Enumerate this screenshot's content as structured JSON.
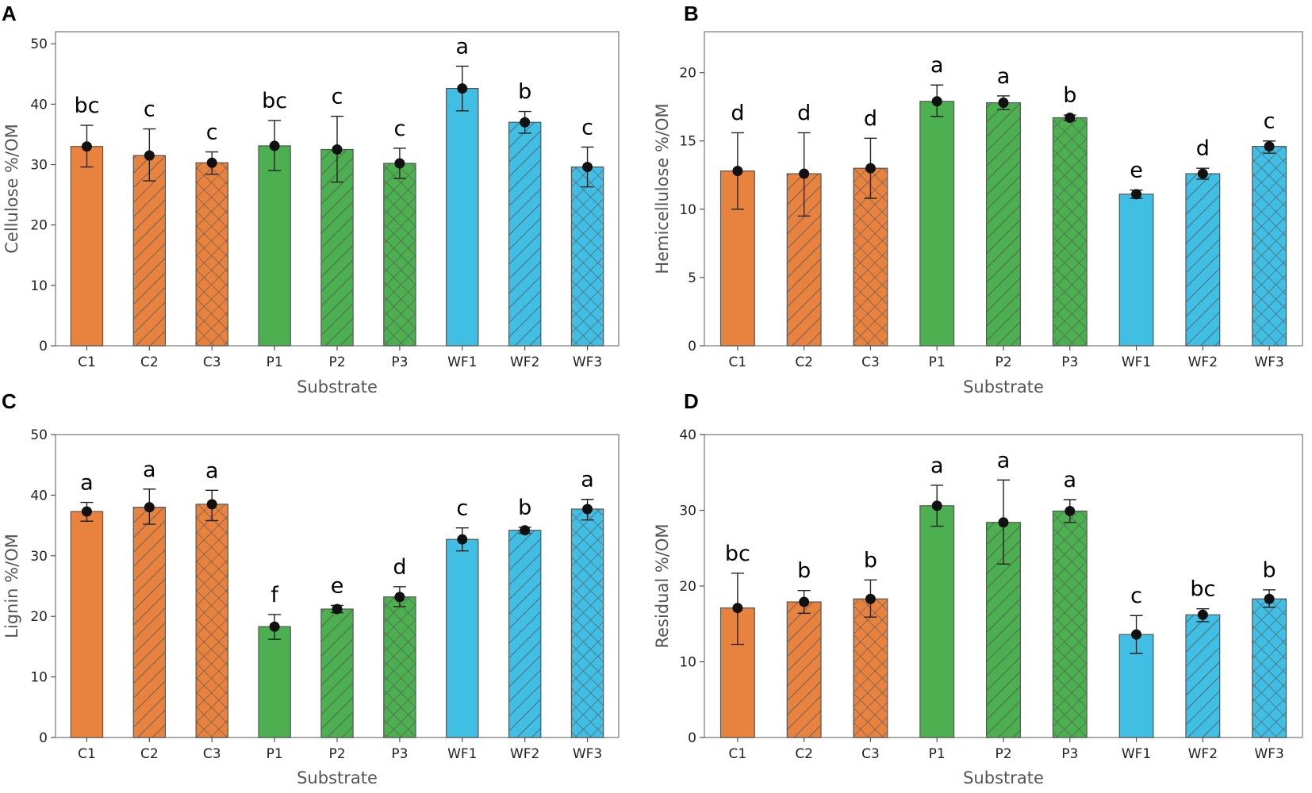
{
  "colors": {
    "C": "#E8833F",
    "P": "#4CAF50",
    "WF": "#41BEE3",
    "hatch": "#555555",
    "frame": "#888888"
  },
  "chart_data": [
    {
      "panel": "A",
      "type": "bar",
      "xlabel": "Substrate",
      "ylabel": "Cellulose %/OM",
      "ylim": [
        0,
        52
      ],
      "yticks": [
        0,
        10,
        20,
        30,
        40,
        50
      ],
      "categories": [
        "C1",
        "C2",
        "C3",
        "P1",
        "P2",
        "P3",
        "WF1",
        "WF2",
        "WF3"
      ],
      "values": [
        33.0,
        31.5,
        30.3,
        33.1,
        32.5,
        30.2,
        42.6,
        37.0,
        29.6
      ],
      "err_high": [
        36.5,
        35.9,
        32.1,
        37.3,
        38.0,
        32.7,
        46.3,
        38.8,
        32.9
      ],
      "err_low": [
        29.6,
        27.3,
        28.4,
        29.0,
        27.1,
        27.7,
        38.9,
        35.2,
        26.3
      ],
      "letters": [
        "bc",
        "c",
        "c",
        "bc",
        "c",
        "c",
        "a",
        "b",
        "c"
      ]
    },
    {
      "panel": "B",
      "type": "bar",
      "xlabel": "Substrate",
      "ylabel": "Hemicellulose %/OM",
      "ylim": [
        0,
        23
      ],
      "yticks": [
        0,
        5,
        10,
        15,
        20
      ],
      "categories": [
        "C1",
        "C2",
        "C3",
        "P1",
        "P2",
        "P3",
        "WF1",
        "WF2",
        "WF3"
      ],
      "values": [
        12.8,
        12.6,
        13.0,
        17.9,
        17.8,
        16.7,
        11.1,
        12.6,
        14.6
      ],
      "err_high": [
        15.6,
        15.6,
        15.2,
        19.1,
        18.3,
        16.9,
        11.4,
        13.0,
        15.0
      ],
      "err_low": [
        10.0,
        9.5,
        10.8,
        16.8,
        17.3,
        16.5,
        10.8,
        12.2,
        14.1
      ],
      "letters": [
        "d",
        "d",
        "d",
        "a",
        "a",
        "b",
        "e",
        "d",
        "c"
      ]
    },
    {
      "panel": "C",
      "type": "bar",
      "xlabel": "Substrate",
      "ylabel": "Lignin %/OM",
      "ylim": [
        0,
        50
      ],
      "yticks": [
        0,
        10,
        20,
        30,
        40,
        50
      ],
      "categories": [
        "C1",
        "C2",
        "C3",
        "P1",
        "P2",
        "P3",
        "WF1",
        "WF2",
        "WF3"
      ],
      "values": [
        37.3,
        38.0,
        38.5,
        18.3,
        21.2,
        23.2,
        32.7,
        34.2,
        37.7
      ],
      "err_high": [
        38.8,
        41.0,
        40.8,
        20.3,
        21.8,
        24.9,
        34.6,
        34.7,
        39.3
      ],
      "err_low": [
        35.7,
        35.2,
        35.8,
        16.2,
        20.6,
        21.6,
        30.8,
        33.7,
        35.9
      ],
      "letters": [
        "a",
        "a",
        "a",
        "f",
        "e",
        "d",
        "c",
        "b",
        "a"
      ]
    },
    {
      "panel": "D",
      "type": "bar",
      "xlabel": "Substrate",
      "ylabel": "Residual %/OM",
      "ylim": [
        0,
        40
      ],
      "yticks": [
        0,
        10,
        20,
        30,
        40
      ],
      "categories": [
        "C1",
        "C2",
        "C3",
        "P1",
        "P2",
        "P3",
        "WF1",
        "WF2",
        "WF3"
      ],
      "values": [
        17.1,
        17.9,
        18.3,
        30.6,
        28.4,
        29.9,
        13.6,
        16.2,
        18.3
      ],
      "err_high": [
        21.7,
        19.4,
        20.8,
        33.3,
        34.0,
        31.4,
        16.1,
        17.0,
        19.5
      ],
      "err_low": [
        12.3,
        16.4,
        15.9,
        27.9,
        22.9,
        28.4,
        11.1,
        15.3,
        17.2
      ],
      "letters": [
        "bc",
        "b",
        "b",
        "a",
        "a",
        "a",
        "c",
        "bc",
        "b"
      ]
    }
  ]
}
